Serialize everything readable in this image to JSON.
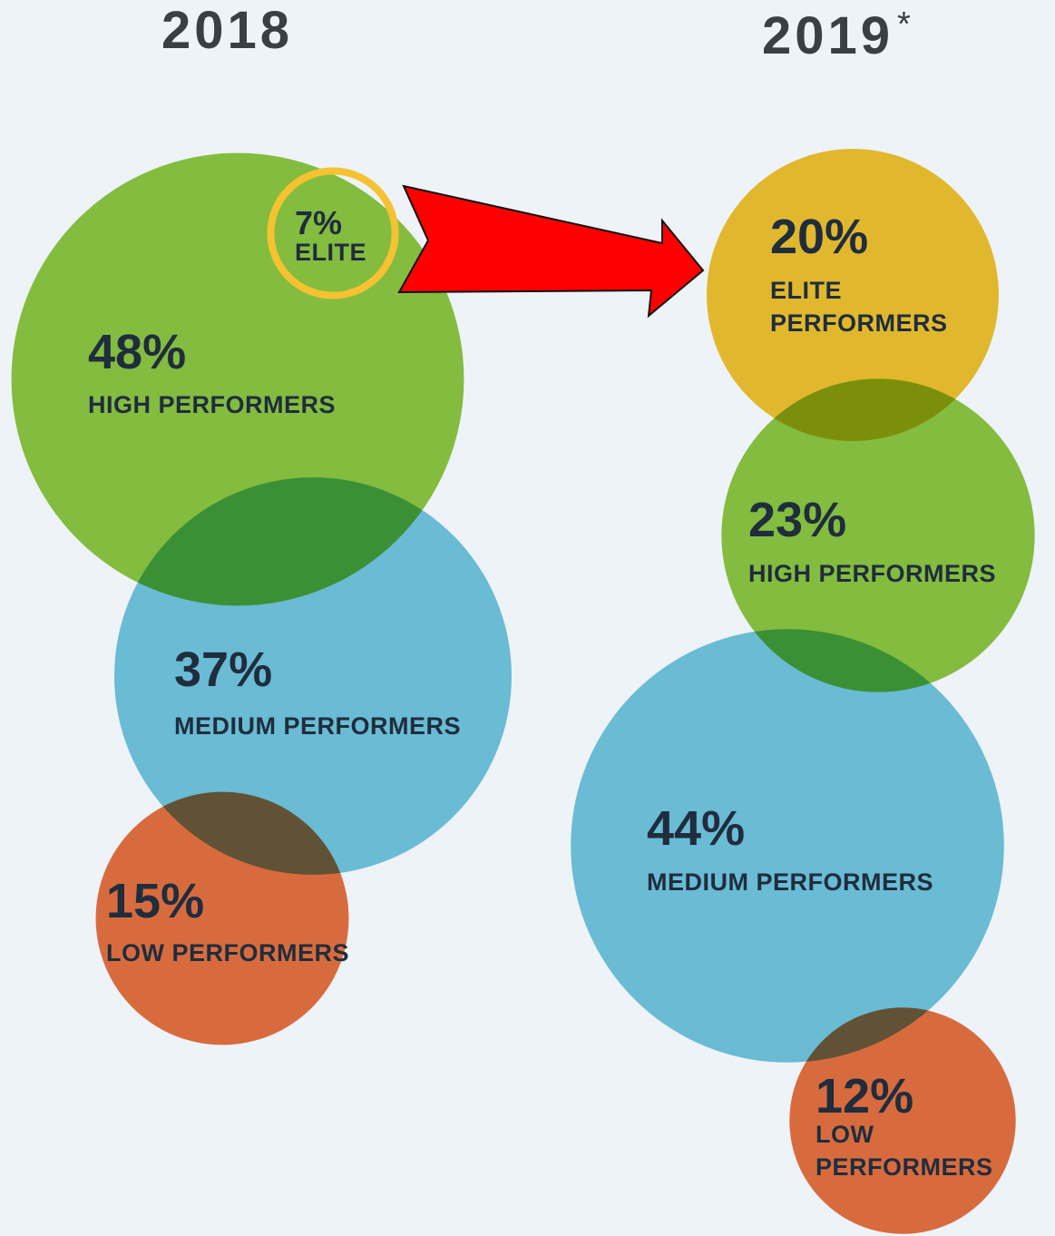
{
  "chart_data": [
    {
      "type": "bubble",
      "title": "2018",
      "categories": [
        "ELITE",
        "HIGH PERFORMERS",
        "MEDIUM PERFORMERS",
        "LOW PERFORMERS"
      ],
      "values": [
        7,
        48,
        37,
        15
      ],
      "value_labels": [
        "7%",
        "48%",
        "37%",
        "15%"
      ],
      "colors": [
        "#f5c232",
        "#8cc63f",
        "#72c4da",
        "#e8703f"
      ],
      "outlined": [
        true,
        false,
        false,
        false
      ]
    },
    {
      "type": "bubble",
      "title": "2019",
      "title_mark": "*",
      "categories": [
        "ELITE PERFORMERS",
        "HIGH PERFORMERS",
        "MEDIUM PERFORMERS",
        "LOW PERFORMERS"
      ],
      "values": [
        20,
        23,
        44,
        12
      ],
      "value_labels": [
        "20%",
        "23%",
        "44%",
        "12%"
      ],
      "colors": [
        "#f2c12e",
        "#8cc63f",
        "#72c4da",
        "#e8703f"
      ],
      "outlined": [
        false,
        false,
        false,
        false
      ]
    }
  ]
}
